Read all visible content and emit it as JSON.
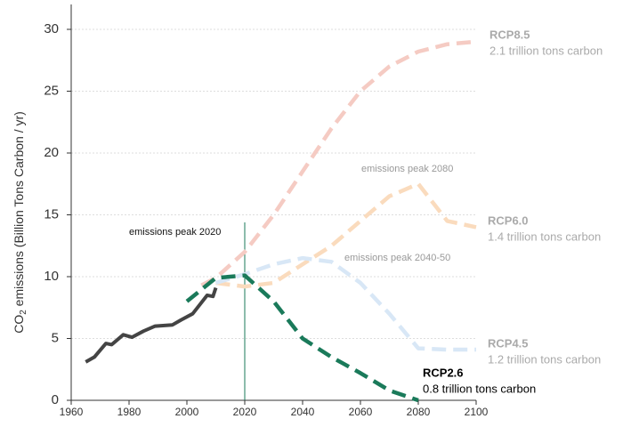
{
  "chart_data": {
    "type": "line",
    "ylabel": {
      "main": "CO",
      "sub": "2",
      "rest": " emissions (Billion Tons Carbon / yr)"
    },
    "xlim": [
      1960,
      2100
    ],
    "xticks": [
      1960,
      1980,
      2000,
      2020,
      2040,
      2060,
      2080,
      2100
    ],
    "ylim": [
      0,
      30
    ],
    "yticks": [
      0,
      5,
      10,
      15,
      20,
      25,
      30
    ],
    "grid": true,
    "series": [
      {
        "name": "RCP8.5",
        "label": "2.1 trillion tons carbon",
        "color": "#f5cbc3",
        "dashed": true,
        "x": [
          2005,
          2010,
          2020,
          2030,
          2040,
          2050,
          2060,
          2070,
          2080,
          2090,
          2100
        ],
        "values": [
          9.3,
          9.9,
          12,
          15,
          18.5,
          22,
          25,
          27,
          28.2,
          28.8,
          29
        ]
      },
      {
        "name": "RCP6.0",
        "label": "1.4 trillion tons carbon",
        "color": "#fadbbd",
        "dashed": true,
        "x": [
          2010,
          2020,
          2030,
          2040,
          2050,
          2060,
          2070,
          2080,
          2085,
          2090,
          2100
        ],
        "values": [
          9.5,
          9.2,
          9.5,
          11,
          12.5,
          14.5,
          16.5,
          17.5,
          16,
          14.5,
          14
        ]
      },
      {
        "name": "RCP4.5",
        "label": "1.2 trillion tons carbon",
        "color": "#d8e7f6",
        "dashed": true,
        "x": [
          2010,
          2020,
          2030,
          2040,
          2050,
          2060,
          2070,
          2080,
          2090,
          2100
        ],
        "values": [
          9.5,
          10.2,
          11,
          11.5,
          11.2,
          9.5,
          7,
          4.2,
          4.1,
          4.1
        ]
      },
      {
        "color": "#444444",
        "dashed": false,
        "x": [
          1965,
          1968,
          1972,
          1974,
          1978,
          1981,
          1985,
          1989,
          1995,
          1998,
          2002,
          2005,
          2007,
          2009,
          2010
        ],
        "values": [
          3.1,
          3.5,
          4.6,
          4.5,
          5.3,
          5.1,
          5.6,
          6.0,
          6.1,
          6.5,
          7.0,
          7.9,
          8.5,
          8.4,
          9.1
        ]
      },
      {
        "name": "RCP2.6",
        "label": "0.8 trillion tons carbon",
        "color": "#1a7a5a",
        "dashed": true,
        "x": [
          2000,
          2010,
          2020,
          2030,
          2040,
          2050,
          2060,
          2070,
          2080
        ],
        "values": [
          8,
          9.9,
          10.1,
          8,
          5,
          3.5,
          2.2,
          0.8,
          0
        ]
      }
    ],
    "vline": {
      "x": 2020,
      "label": "emissions peak 2020",
      "color": "#1a7a5a"
    },
    "annotations": [
      "emissions peak 2080",
      "emissions peak 2040-50"
    ]
  }
}
